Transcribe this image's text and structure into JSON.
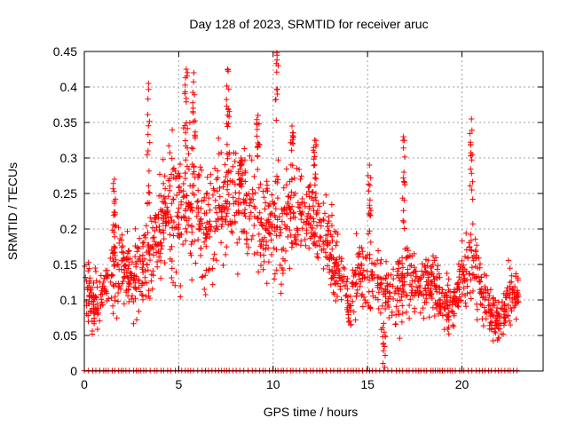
{
  "chart_data": {
    "type": "scatter",
    "title": "Day 128 of 2023, SRMTID for receiver aruc",
    "xlabel": "GPS time / hours",
    "ylabel": "SRMTID / TECUs",
    "xlim": [
      0,
      24.3
    ],
    "ylim": [
      0,
      0.45
    ],
    "xticks": [
      0,
      5,
      10,
      15,
      20
    ],
    "xtick_labels": [
      "0",
      "5",
      "10",
      "15",
      "20"
    ],
    "yticks": [
      0,
      0.05,
      0.1,
      0.15,
      0.2,
      0.25,
      0.3,
      0.35,
      0.4,
      0.45
    ],
    "ytick_labels": [
      "0",
      "0.05",
      "0.1",
      "0.15",
      "0.2",
      "0.25",
      "0.3",
      "0.35",
      "0.4",
      "0.45"
    ],
    "grid": true,
    "marker": "+",
    "series": [
      {
        "name": "SRMTID",
        "color": "#ff0000",
        "envelope": {
          "hours": [
            0,
            0.5,
            1,
            1.5,
            2,
            2.5,
            3,
            3.5,
            4,
            4.5,
            5,
            5.5,
            6,
            6.5,
            7,
            7.5,
            8,
            8.5,
            9,
            9.5,
            10,
            10.5,
            11,
            11.5,
            12,
            12.5,
            13,
            13.5,
            14,
            14.5,
            15,
            15.5,
            16,
            16.5,
            17,
            17.5,
            18,
            18.5,
            19,
            19.5,
            20,
            20.5,
            21,
            21.5,
            22,
            22.5,
            23
          ],
          "center": [
            0.11,
            0.1,
            0.1,
            0.14,
            0.15,
            0.13,
            0.15,
            0.17,
            0.21,
            0.23,
            0.22,
            0.24,
            0.23,
            0.2,
            0.23,
            0.25,
            0.24,
            0.25,
            0.22,
            0.2,
            0.21,
            0.2,
            0.21,
            0.23,
            0.22,
            0.19,
            0.17,
            0.13,
            0.09,
            0.14,
            0.13,
            0.12,
            0.11,
            0.11,
            0.13,
            0.13,
            0.12,
            0.12,
            0.1,
            0.08,
            0.13,
            0.16,
            0.12,
            0.08,
            0.07,
            0.11,
            0.11
          ],
          "spread": [
            0.035,
            0.04,
            0.035,
            0.05,
            0.05,
            0.045,
            0.055,
            0.06,
            0.07,
            0.075,
            0.08,
            0.08,
            0.075,
            0.07,
            0.075,
            0.075,
            0.075,
            0.07,
            0.065,
            0.06,
            0.065,
            0.065,
            0.07,
            0.065,
            0.06,
            0.055,
            0.05,
            0.045,
            0.03,
            0.045,
            0.045,
            0.045,
            0.045,
            0.045,
            0.045,
            0.04,
            0.04,
            0.04,
            0.035,
            0.03,
            0.045,
            0.05,
            0.04,
            0.03,
            0.03,
            0.035,
            0.035
          ]
        },
        "peaks": [
          {
            "hour": 3.4,
            "value": 0.405
          },
          {
            "hour": 5.4,
            "value": 0.425
          },
          {
            "hour": 5.8,
            "value": 0.42
          },
          {
            "hour": 7.6,
            "value": 0.425
          },
          {
            "hour": 8.3,
            "value": 0.3
          },
          {
            "hour": 10.2,
            "value": 0.448
          },
          {
            "hour": 11.0,
            "value": 0.345
          },
          {
            "hour": 15.1,
            "value": 0.29
          },
          {
            "hour": 16.9,
            "value": 0.33
          },
          {
            "hour": 20.5,
            "value": 0.355
          },
          {
            "hour": 1.6,
            "value": 0.27
          },
          {
            "hour": 12.2,
            "value": 0.325
          },
          {
            "hour": 9.2,
            "value": 0.36
          }
        ],
        "zero_values": {
          "range_hours": [
            0,
            23
          ],
          "value": 0
        }
      }
    ]
  }
}
